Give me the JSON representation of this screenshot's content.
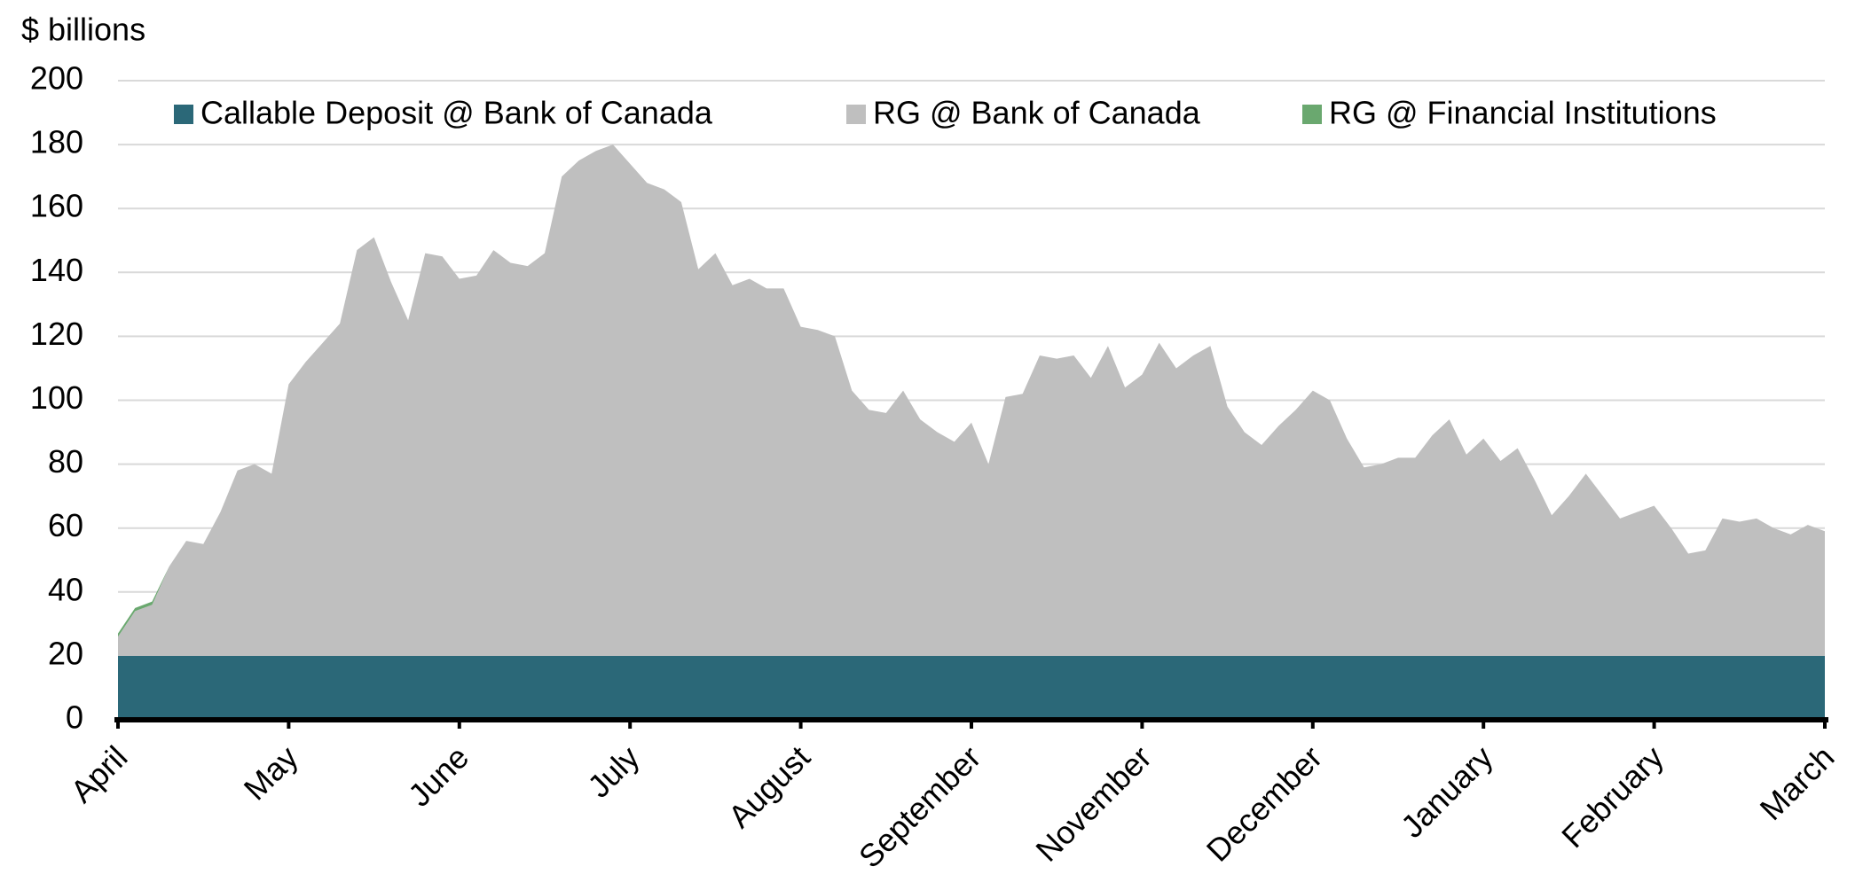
{
  "chart_data": {
    "type": "stacked_area",
    "y_axis_label": "$ billions",
    "categories": [
      "April",
      null,
      null,
      null,
      null,
      null,
      null,
      null,
      null,
      null,
      "May",
      null,
      null,
      null,
      null,
      null,
      null,
      null,
      null,
      null,
      "June",
      null,
      null,
      null,
      null,
      null,
      null,
      null,
      null,
      null,
      "July",
      null,
      null,
      null,
      null,
      null,
      null,
      null,
      null,
      null,
      "August",
      null,
      null,
      null,
      null,
      null,
      null,
      null,
      null,
      null,
      "September",
      null,
      null,
      null,
      null,
      null,
      null,
      null,
      null,
      null,
      "November",
      null,
      null,
      null,
      null,
      null,
      null,
      null,
      null,
      null,
      "December",
      null,
      null,
      null,
      null,
      null,
      null,
      null,
      null,
      null,
      "January",
      null,
      null,
      null,
      null,
      null,
      null,
      null,
      null,
      null,
      "February",
      null,
      null,
      null,
      null,
      null,
      null,
      null,
      null,
      null,
      "March"
    ],
    "series": [
      {
        "name": "Callable Deposit @ Bank of Canada",
        "color": "#2b6878",
        "values": [
          20,
          20,
          20,
          20,
          20,
          20,
          20,
          20,
          20,
          20,
          20,
          20,
          20,
          20,
          20,
          20,
          20,
          20,
          20,
          20,
          20,
          20,
          20,
          20,
          20,
          20,
          20,
          20,
          20,
          20,
          20,
          20,
          20,
          20,
          20,
          20,
          20,
          20,
          20,
          20,
          20,
          20,
          20,
          20,
          20,
          20,
          20,
          20,
          20,
          20,
          20,
          20,
          20,
          20,
          20,
          20,
          20,
          20,
          20,
          20,
          20,
          20,
          20,
          20,
          20,
          20,
          20,
          20,
          20,
          20,
          20,
          20,
          20,
          20,
          20,
          20,
          20,
          20,
          20,
          20,
          20,
          20,
          20,
          20,
          20,
          20,
          20,
          20,
          20,
          20,
          20,
          20,
          20,
          20,
          20,
          20,
          20,
          20,
          20,
          20,
          20
        ]
      },
      {
        "name": "RG @ Bank of Canada",
        "color": "#bfbfbf",
        "values": [
          6,
          14,
          16,
          28,
          36,
          35,
          45,
          58,
          60,
          57,
          85,
          92,
          98,
          104,
          127,
          131,
          117,
          105,
          126,
          125,
          118,
          119,
          127,
          123,
          122,
          126,
          150,
          155,
          158,
          160,
          154,
          148,
          146,
          142,
          121,
          126,
          116,
          118,
          115,
          115,
          103,
          102,
          100,
          83,
          77,
          76,
          83,
          74,
          70,
          67,
          73,
          60,
          81,
          82,
          94,
          93,
          94,
          87,
          97,
          84,
          88,
          98,
          90,
          94,
          97,
          78,
          70,
          66,
          72,
          77,
          83,
          80,
          68,
          59,
          60,
          62,
          62,
          69,
          74,
          63,
          68,
          61,
          65,
          55,
          44,
          50,
          57,
          50,
          43,
          45,
          47,
          40,
          32,
          33,
          43,
          42,
          43,
          40,
          38,
          41,
          39
        ]
      },
      {
        "name": "RG @ Financial Institutions",
        "color": "#6aa86f",
        "values": [
          1,
          1,
          1,
          0,
          0,
          0,
          0,
          0,
          0,
          0,
          0,
          0,
          0,
          0,
          0,
          0,
          0,
          0,
          0,
          0,
          0,
          0,
          0,
          0,
          0,
          0,
          0,
          0,
          0,
          0,
          0,
          0,
          0,
          0,
          0,
          0,
          0,
          0,
          0,
          0,
          0,
          0,
          0,
          0,
          0,
          0,
          0,
          0,
          0,
          0,
          0,
          0,
          0,
          0,
          0,
          0,
          0,
          0,
          0,
          0,
          0,
          0,
          0,
          0,
          0,
          0,
          0,
          0,
          0,
          0,
          0,
          0,
          0,
          0,
          0,
          0,
          0,
          0,
          0,
          0,
          0,
          0,
          0,
          0,
          0,
          0,
          0,
          0,
          0,
          0,
          0,
          0,
          0,
          0,
          0,
          0,
          0,
          0,
          0,
          0,
          0
        ]
      }
    ],
    "ylim": [
      0,
      200
    ],
    "yticks": [
      0,
      20,
      40,
      60,
      80,
      100,
      120,
      140,
      160,
      180,
      200
    ],
    "grid": true,
    "legend": "top"
  }
}
